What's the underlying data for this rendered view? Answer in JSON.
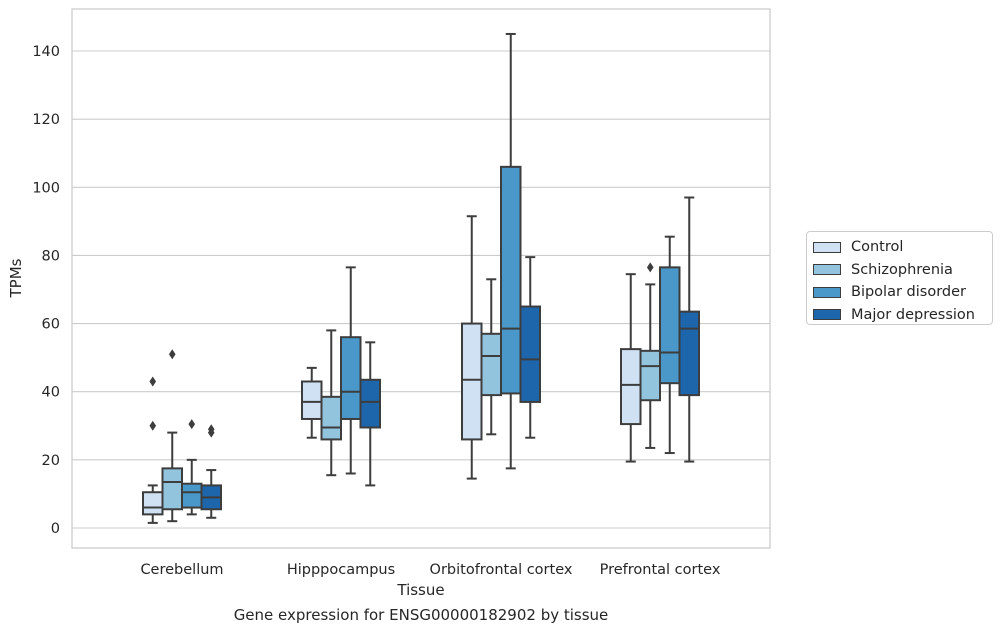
{
  "chart_data": {
    "type": "boxplot",
    "title": "",
    "caption": "Gene expression for ENSG00000182902 by tissue",
    "xlabel": "Tissue",
    "ylabel": "TPMs",
    "ylim": [
      -6,
      153
    ],
    "yticks": [
      0,
      20,
      40,
      60,
      80,
      100,
      120,
      140
    ],
    "grid": "horizontal",
    "legend_position": "right",
    "categories": [
      "Cerebellum",
      "Hipppocampus",
      "Orbitofrontal cortex",
      "Prefrontal cortex"
    ],
    "series": [
      {
        "name": "Control",
        "color": "#cfe1f2",
        "boxes": [
          {
            "whisker_low": 1.5,
            "q1": 4,
            "median": 6,
            "q3": 10.5,
            "whisker_high": 12.5,
            "outliers": [
              30,
              43
            ]
          },
          {
            "whisker_low": 26.5,
            "q1": 32,
            "median": 37,
            "q3": 43,
            "whisker_high": 47,
            "outliers": []
          },
          {
            "whisker_low": 14.5,
            "q1": 26,
            "median": 43.5,
            "q3": 60,
            "whisker_high": 91.5,
            "outliers": []
          },
          {
            "whisker_low": 19.5,
            "q1": 30.5,
            "median": 42,
            "q3": 52.5,
            "whisker_high": 74.5,
            "outliers": []
          }
        ]
      },
      {
        "name": "Schizophrenia",
        "color": "#93c4de",
        "boxes": [
          {
            "whisker_low": 2,
            "q1": 5.5,
            "median": 13.5,
            "q3": 17.5,
            "whisker_high": 28,
            "outliers": [
              51
            ]
          },
          {
            "whisker_low": 15.5,
            "q1": 26,
            "median": 29.5,
            "q3": 38.5,
            "whisker_high": 58,
            "outliers": []
          },
          {
            "whisker_low": 27.5,
            "q1": 39,
            "median": 50.5,
            "q3": 57,
            "whisker_high": 73,
            "outliers": []
          },
          {
            "whisker_low": 23.5,
            "q1": 37.5,
            "median": 47.5,
            "q3": 52,
            "whisker_high": 71.5,
            "outliers": [
              76.5
            ]
          }
        ]
      },
      {
        "name": "Bipolar disorder",
        "color": "#4a98c9",
        "boxes": [
          {
            "whisker_low": 4,
            "q1": 6,
            "median": 10.5,
            "q3": 13,
            "whisker_high": 20,
            "outliers": [
              30.5
            ]
          },
          {
            "whisker_low": 16,
            "q1": 32,
            "median": 40,
            "q3": 56,
            "whisker_high": 76.5,
            "outliers": []
          },
          {
            "whisker_low": 17.5,
            "q1": 39.5,
            "median": 58.5,
            "q3": 106,
            "whisker_high": 145,
            "outliers": []
          },
          {
            "whisker_low": 22,
            "q1": 42.5,
            "median": 51.5,
            "q3": 76.5,
            "whisker_high": 85.5,
            "outliers": []
          }
        ]
      },
      {
        "name": "Major depression",
        "color": "#1d66ab",
        "boxes": [
          {
            "whisker_low": 3,
            "q1": 5.5,
            "median": 9,
            "q3": 12.5,
            "whisker_high": 17,
            "outliers": [
              28,
              29
            ]
          },
          {
            "whisker_low": 12.5,
            "q1": 29.5,
            "median": 37,
            "q3": 43.5,
            "whisker_high": 54.5,
            "outliers": []
          },
          {
            "whisker_low": 26.5,
            "q1": 37,
            "median": 49.5,
            "q3": 65,
            "whisker_high": 79.5,
            "outliers": []
          },
          {
            "whisker_low": 19.5,
            "q1": 39,
            "median": 58.5,
            "q3": 63.5,
            "whisker_high": 97,
            "outliers": []
          }
        ]
      }
    ]
  }
}
